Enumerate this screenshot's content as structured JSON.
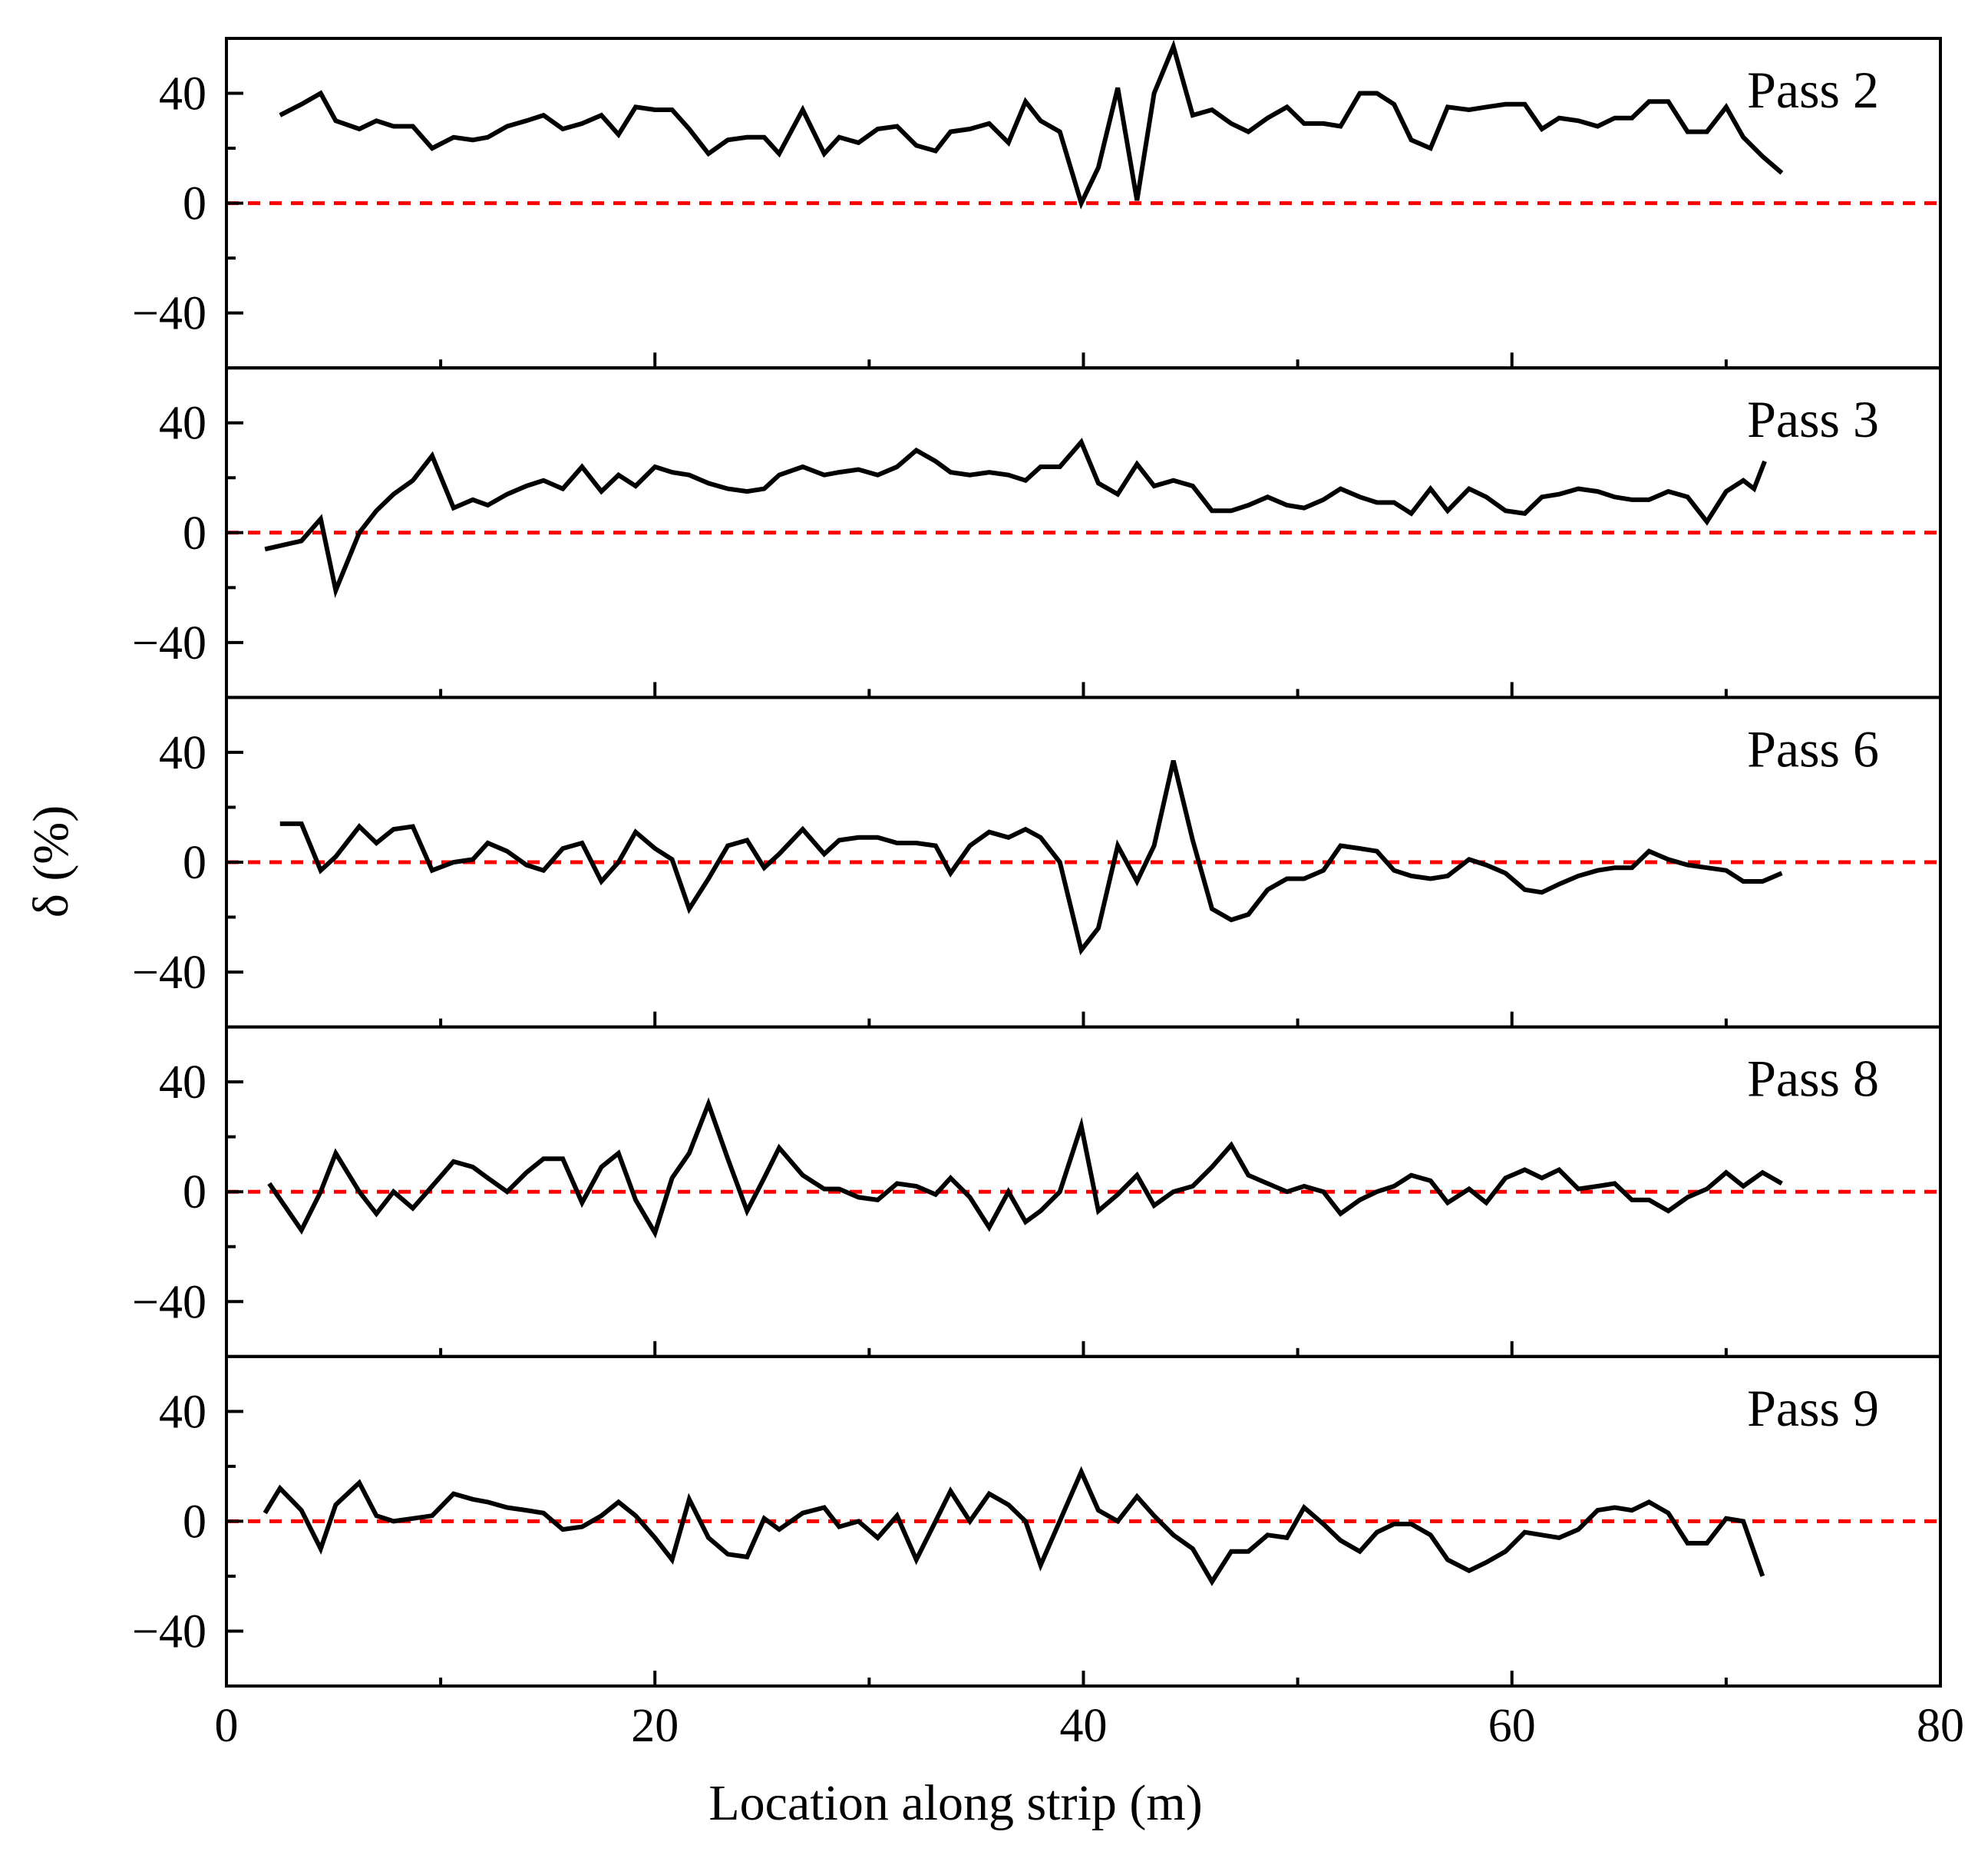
{
  "chart_data": {
    "type": "line",
    "xlabel": "Location along strip (m)",
    "ylabel": "δ (%)",
    "xlim": [
      0,
      80
    ],
    "xticks": [
      0,
      20,
      40,
      60,
      80
    ],
    "xminor": [
      10,
      30,
      50,
      70
    ],
    "ylim": [
      -60,
      60
    ],
    "yticks": [
      {
        "value": -40,
        "label": "−40"
      },
      0,
      40
    ],
    "yminor": [
      -20,
      20
    ],
    "color": "#000000",
    "reference": {
      "value": 0,
      "color": "#ff0000"
    },
    "panels": [
      {
        "label": "Pass 2",
        "x": [
          2.5,
          3.5,
          4.4,
          5.1,
          6.2,
          7.0,
          7.8,
          8.7,
          9.6,
          10.6,
          11.5,
          12.2,
          13.1,
          14.0,
          14.8,
          15.7,
          16.6,
          17.5,
          18.3,
          19.1,
          20.0,
          20.8,
          21.6,
          22.5,
          23.4,
          24.3,
          25.1,
          25.8,
          26.9,
          27.9,
          28.6,
          29.5,
          30.4,
          31.3,
          32.2,
          33.1,
          33.8,
          34.7,
          35.6,
          36.5,
          37.3,
          38.0,
          38.9,
          39.9,
          40.7,
          41.6,
          42.5,
          43.3,
          44.2,
          45.1,
          46.0,
          46.9,
          47.7,
          48.6,
          49.5,
          50.3,
          51.2,
          52.0,
          52.9,
          53.7,
          54.5,
          55.3,
          56.2,
          57.0,
          58.0,
          58.8,
          59.7,
          60.6,
          61.4,
          62.2,
          63.1,
          64.0,
          64.8,
          65.6,
          66.4,
          67.3,
          68.2,
          69.1,
          70.0,
          70.8,
          71.7,
          72.6
        ],
        "values": [
          32,
          36,
          40,
          30,
          27,
          30,
          28,
          28,
          20,
          24,
          23,
          24,
          28,
          30,
          32,
          27,
          29,
          32,
          25,
          35,
          34,
          34,
          27,
          18,
          23,
          24,
          24,
          18,
          34,
          18,
          24,
          22,
          27,
          28,
          21,
          19,
          26,
          27,
          29,
          22,
          37,
          30,
          26,
          0,
          13,
          42,
          1,
          40,
          57,
          32,
          34,
          29,
          26,
          31,
          35,
          29,
          29,
          28,
          40,
          40,
          36,
          23,
          20,
          35,
          34,
          35,
          36,
          36,
          27,
          31,
          30,
          28,
          31,
          31,
          37,
          37,
          26,
          26,
          35,
          24,
          17,
          11
        ]
      },
      {
        "label": "Pass 3",
        "x": [
          1.8,
          3.5,
          4.4,
          5.1,
          6.2,
          7.0,
          7.8,
          8.7,
          9.6,
          10.6,
          11.5,
          12.2,
          13.1,
          14.0,
          14.8,
          15.7,
          16.6,
          17.5,
          18.3,
          19.1,
          20.0,
          20.8,
          21.6,
          22.5,
          23.4,
          24.3,
          25.1,
          25.8,
          26.9,
          27.9,
          28.6,
          29.5,
          30.4,
          31.3,
          32.2,
          33.1,
          33.8,
          34.7,
          35.6,
          36.5,
          37.3,
          38.0,
          38.9,
          39.9,
          40.7,
          41.6,
          42.5,
          43.3,
          44.2,
          45.1,
          46.0,
          46.9,
          47.7,
          48.6,
          49.5,
          50.3,
          51.2,
          52.0,
          52.9,
          53.7,
          54.5,
          55.3,
          56.2,
          57.0,
          58.0,
          58.8,
          59.7,
          60.6,
          61.4,
          62.2,
          63.1,
          64.0,
          64.8,
          65.6,
          66.4,
          67.3,
          68.2,
          69.1,
          70.0,
          70.8,
          71.3,
          71.8
        ],
        "values": [
          -6,
          -3,
          5,
          -21,
          0,
          8,
          14,
          19,
          28,
          9,
          12,
          10,
          14,
          17,
          19,
          16,
          24,
          15,
          21,
          17,
          24,
          22,
          21,
          18,
          16,
          15,
          16,
          21,
          24,
          21,
          22,
          23,
          21,
          24,
          30,
          26,
          22,
          21,
          22,
          21,
          19,
          24,
          24,
          33,
          18,
          14,
          25,
          17,
          19,
          17,
          8,
          8,
          10,
          13,
          10,
          9,
          12,
          16,
          13,
          11,
          11,
          7,
          16,
          8,
          16,
          13,
          8,
          7,
          13,
          14,
          16,
          15,
          13,
          12,
          12,
          15,
          13,
          4,
          15,
          19,
          16,
          26
        ]
      },
      {
        "label": "Pass 6",
        "x": [
          2.5,
          3.5,
          4.4,
          5.1,
          6.2,
          7.0,
          7.8,
          8.7,
          9.6,
          10.6,
          11.5,
          12.2,
          13.1,
          14.0,
          14.8,
          15.7,
          16.6,
          17.5,
          18.3,
          19.1,
          20.0,
          20.8,
          21.6,
          22.5,
          23.4,
          24.3,
          25.1,
          25.8,
          26.9,
          27.9,
          28.6,
          29.5,
          30.4,
          31.3,
          32.2,
          33.1,
          33.8,
          34.7,
          35.6,
          36.5,
          37.3,
          38.0,
          38.9,
          39.9,
          40.7,
          41.6,
          42.5,
          43.3,
          44.2,
          45.1,
          46.0,
          46.9,
          47.7,
          48.6,
          49.5,
          50.3,
          51.2,
          52.0,
          52.9,
          53.7,
          54.5,
          55.3,
          56.2,
          57.0,
          58.0,
          58.8,
          59.7,
          60.6,
          61.4,
          62.2,
          63.1,
          64.0,
          64.8,
          65.6,
          66.4,
          67.3,
          68.2,
          69.1,
          70.0,
          70.8,
          71.7,
          72.6
        ],
        "values": [
          14,
          14,
          -3,
          2,
          13,
          7,
          12,
          13,
          -3,
          0,
          1,
          7,
          4,
          -1,
          -3,
          5,
          7,
          -7,
          0,
          11,
          5,
          1,
          -17,
          -6,
          6,
          8,
          -2,
          3,
          12,
          3,
          8,
          9,
          9,
          7,
          7,
          6,
          -4,
          6,
          11,
          9,
          12,
          9,
          0,
          -32,
          -24,
          6,
          -7,
          6,
          37,
          8,
          -17,
          -21,
          -19,
          -10,
          -6,
          -6,
          -3,
          6,
          5,
          4,
          -3,
          -5,
          -6,
          -5,
          1,
          -1,
          -4,
          -10,
          -11,
          -8,
          -5,
          -3,
          -2,
          -2,
          4,
          1,
          -1,
          -2,
          -3,
          -7,
          -7,
          -4
        ]
      },
      {
        "label": "Pass 8",
        "x": [
          2.0,
          3.5,
          4.4,
          5.1,
          6.2,
          7.0,
          7.8,
          8.7,
          9.6,
          10.6,
          11.5,
          12.2,
          13.1,
          14.0,
          14.8,
          15.7,
          16.6,
          17.5,
          18.3,
          19.1,
          20.0,
          20.8,
          21.6,
          22.5,
          23.4,
          24.3,
          25.1,
          25.8,
          26.9,
          27.9,
          28.6,
          29.5,
          30.4,
          31.3,
          32.2,
          33.1,
          33.8,
          34.7,
          35.6,
          36.5,
          37.3,
          38.0,
          38.9,
          39.9,
          40.7,
          41.6,
          42.5,
          43.3,
          44.2,
          45.1,
          46.0,
          46.9,
          47.7,
          48.6,
          49.5,
          50.3,
          51.2,
          52.0,
          52.9,
          53.7,
          54.5,
          55.3,
          56.2,
          57.0,
          58.0,
          58.8,
          59.7,
          60.6,
          61.4,
          62.2,
          63.1,
          64.0,
          64.8,
          65.6,
          66.4,
          67.3,
          68.2,
          69.1,
          70.0,
          70.8,
          71.7,
          72.6
        ],
        "values": [
          3,
          -14,
          0,
          14,
          0,
          -8,
          0,
          -6,
          2,
          11,
          9,
          5,
          0,
          7,
          12,
          12,
          -4,
          9,
          14,
          -3,
          -15,
          5,
          14,
          32,
          12,
          -7,
          5,
          16,
          6,
          1,
          1,
          -2,
          -3,
          3,
          2,
          -1,
          5,
          -2,
          -13,
          0,
          -11,
          -7,
          0,
          24,
          -7,
          -1,
          6,
          -5,
          0,
          2,
          9,
          17,
          6,
          3,
          0,
          2,
          0,
          -8,
          -3,
          0,
          2,
          6,
          4,
          -4,
          1,
          -4,
          5,
          8,
          5,
          8,
          1,
          2,
          3,
          -3,
          -3,
          -7,
          -2,
          1,
          7,
          2,
          7,
          3
        ]
      },
      {
        "label": "Pass 9",
        "x": [
          1.8,
          2.5,
          3.5,
          4.4,
          5.1,
          6.2,
          7.0,
          7.8,
          8.7,
          9.6,
          10.6,
          11.5,
          12.2,
          13.1,
          14.0,
          14.8,
          15.7,
          16.6,
          17.5,
          18.3,
          19.1,
          20.0,
          20.8,
          21.6,
          22.5,
          23.4,
          24.3,
          25.1,
          25.8,
          26.9,
          27.9,
          28.6,
          29.5,
          30.4,
          31.3,
          32.2,
          33.1,
          33.8,
          34.7,
          35.6,
          36.5,
          37.3,
          38.0,
          39.9,
          40.7,
          41.6,
          42.5,
          43.3,
          44.2,
          45.1,
          46.0,
          46.9,
          47.7,
          48.6,
          49.5,
          50.3,
          51.2,
          52.0,
          52.9,
          53.7,
          54.5,
          55.3,
          56.2,
          57.0,
          58.0,
          58.8,
          59.7,
          60.6,
          61.4,
          62.2,
          63.1,
          64.0,
          64.8,
          65.6,
          66.4,
          67.3,
          68.2,
          69.1,
          70.0,
          70.8,
          71.7
        ],
        "values": [
          3,
          12,
          4,
          -10,
          6,
          14,
          2,
          0,
          1,
          2,
          10,
          8,
          7,
          5,
          4,
          3,
          -3,
          -2,
          2,
          7,
          2,
          -6,
          -14,
          8,
          -6,
          -12,
          -13,
          1,
          -3,
          3,
          5,
          -2,
          0,
          -6,
          2,
          -14,
          0,
          11,
          0,
          10,
          6,
          0,
          -16,
          18,
          4,
          0,
          9,
          2,
          -5,
          -10,
          -22,
          -11,
          -11,
          -5,
          -6,
          5,
          -1,
          -7,
          -11,
          -4,
          -1,
          -1,
          -5,
          -14,
          -18,
          -15,
          -11,
          -4,
          -5,
          -6,
          -3,
          4,
          5,
          4,
          7,
          3,
          -8,
          -8,
          1,
          0,
          -20
        ]
      }
    ]
  }
}
